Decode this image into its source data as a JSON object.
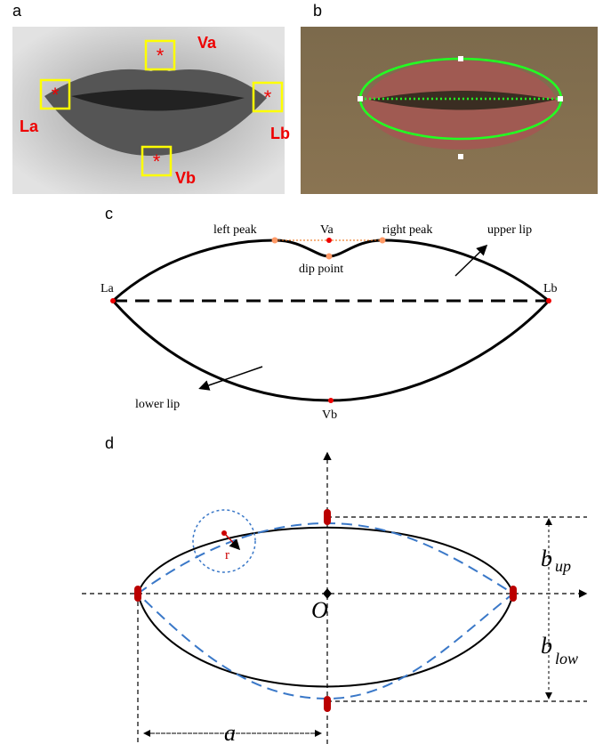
{
  "panel_a": {
    "label": "a",
    "points": {
      "top": "Va",
      "left": "La",
      "right": "Lb",
      "bottom": "Vb"
    }
  },
  "panel_b": {
    "label": "b"
  },
  "panel_c": {
    "label": "c",
    "left_peak": "left peak",
    "top": "Va",
    "right_peak": "right peak",
    "upper_lip": "upper lip",
    "dip_point": "dip point",
    "left": "La",
    "right": "Lb",
    "lower_lip": "lower lip",
    "bottom": "Vb"
  },
  "panel_d": {
    "label": "d",
    "radius": "r",
    "origin": "O",
    "semi_axis": "a",
    "b_up": {
      "symbol": "b",
      "subscript": "up"
    },
    "b_low": {
      "symbol": "b",
      "subscript": "low"
    }
  }
}
